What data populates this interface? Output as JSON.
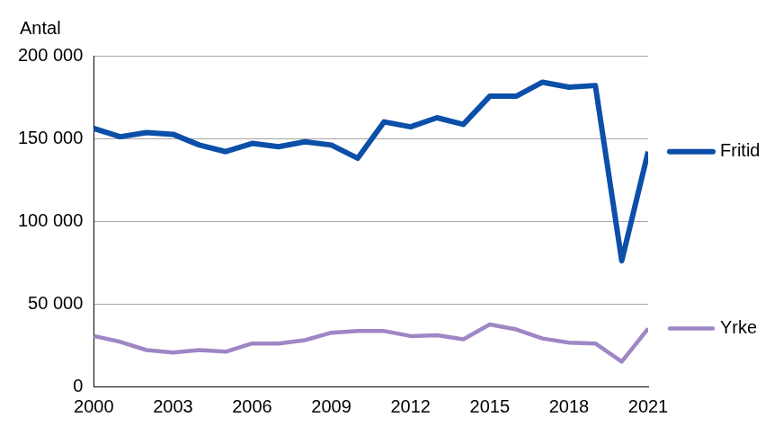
{
  "chart_data": {
    "type": "line",
    "ylabel": "Antal",
    "x": [
      2000,
      2001,
      2002,
      2003,
      2004,
      2005,
      2006,
      2007,
      2008,
      2009,
      2010,
      2011,
      2012,
      2013,
      2014,
      2015,
      2016,
      2017,
      2018,
      2019,
      2020,
      2021
    ],
    "xlim": [
      2000,
      2021
    ],
    "xticks": [
      2000,
      2003,
      2006,
      2009,
      2012,
      2015,
      2018,
      2021
    ],
    "ylim": [
      0,
      200000
    ],
    "yticks": [
      0,
      {
        "value": 50000,
        "label": "50 000"
      },
      {
        "value": 100000,
        "label": "100 000"
      },
      {
        "value": 150000,
        "label": "150 000"
      },
      {
        "value": 200000,
        "label": "200 000"
      }
    ],
    "grid": true,
    "legend": "right",
    "series": [
      {
        "name": "Fritid",
        "color": "#0b4fa8",
        "values": [
          156000,
          151000,
          153500,
          152500,
          146000,
          142000,
          147000,
          145000,
          148000,
          146000,
          138000,
          160000,
          157000,
          162500,
          158500,
          175500,
          175500,
          184000,
          181000,
          182000,
          76000,
          142000
        ]
      },
      {
        "name": "Yrke",
        "color": "#9f86c4",
        "values": [
          30500,
          27000,
          22000,
          20500,
          22000,
          21000,
          26000,
          26000,
          28000,
          32500,
          33500,
          33500,
          30500,
          31000,
          28500,
          37500,
          34500,
          29000,
          26500,
          26000,
          15000,
          35000
        ]
      }
    ]
  }
}
